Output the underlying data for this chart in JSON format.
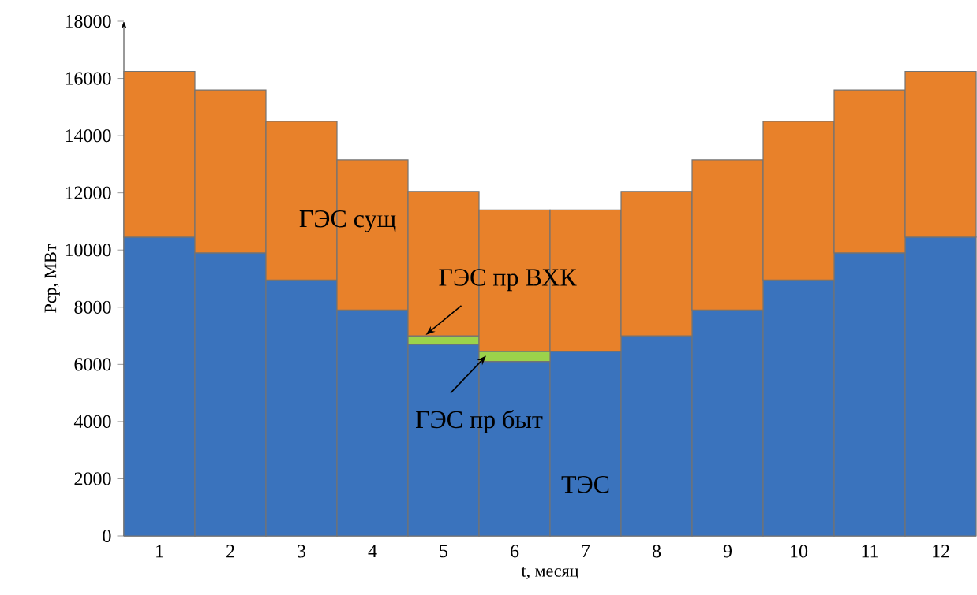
{
  "chart_data": {
    "type": "bar",
    "stacked": true,
    "xlabel": "t, месяц",
    "ylabel": "Pср, МВт",
    "categories": [
      "1",
      "2",
      "3",
      "4",
      "5",
      "6",
      "7",
      "8",
      "9",
      "10",
      "11",
      "12"
    ],
    "series": [
      {
        "name": "ТЭС",
        "color": "#3a73bd",
        "values": [
          10450,
          9900,
          8950,
          7900,
          6700,
          6100,
          6450,
          7000,
          7900,
          8950,
          9900,
          10450
        ]
      },
      {
        "name": "ГЭС пр быт",
        "color": "#9bd34b",
        "values": [
          null,
          null,
          null,
          null,
          null,
          350,
          null,
          null,
          null,
          null,
          null,
          null
        ]
      },
      {
        "name": "ГЭС пр ВХК",
        "color": "#9bd34b",
        "values": [
          null,
          null,
          null,
          null,
          300,
          null,
          null,
          null,
          null,
          null,
          null,
          null
        ]
      },
      {
        "name": "ГЭС сущ",
        "color": "#e8812a",
        "values": [
          5800,
          5700,
          5550,
          5250,
          5050,
          4950,
          4950,
          5050,
          5250,
          5550,
          5700,
          5800
        ]
      }
    ],
    "ylim": [
      0,
      18000
    ],
    "yticks": [
      0,
      2000,
      4000,
      6000,
      8000,
      10000,
      12000,
      14000,
      16000,
      18000
    ],
    "grid": false,
    "legend": false
  }
}
